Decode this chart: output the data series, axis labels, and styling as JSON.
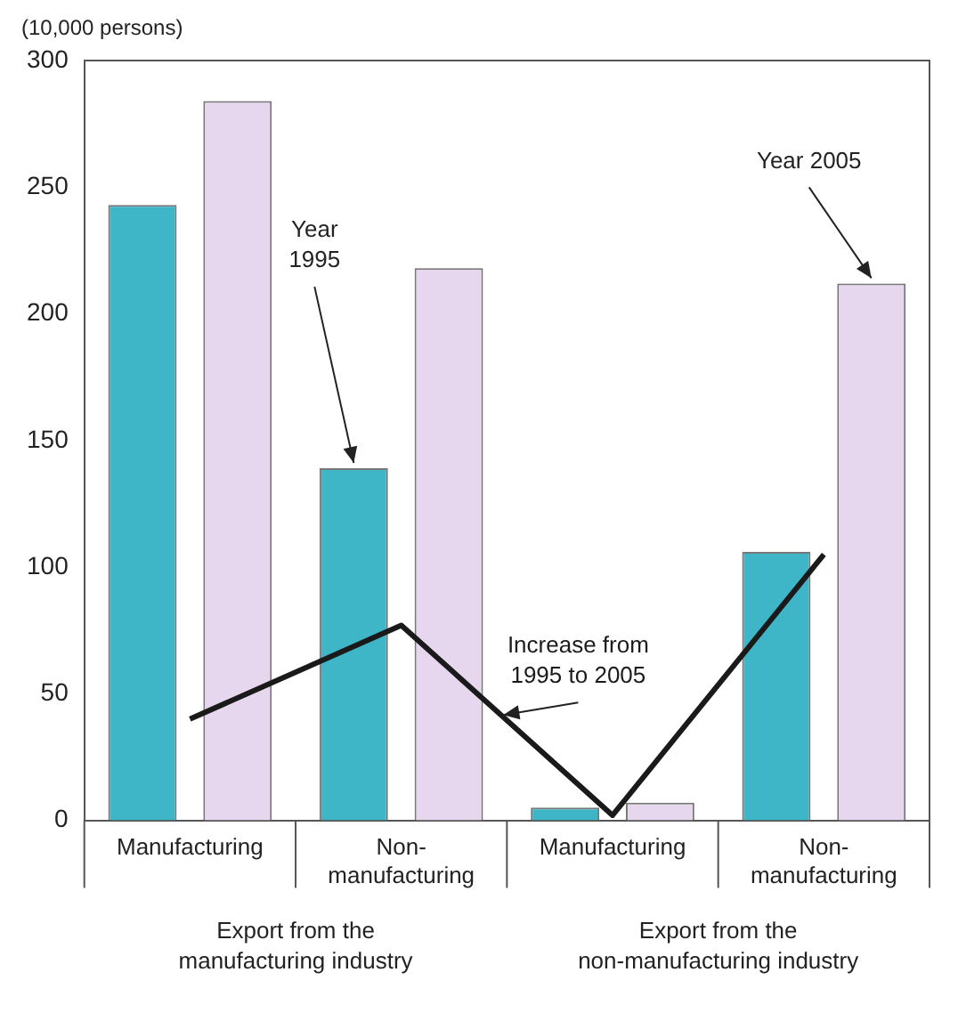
{
  "chart_data": {
    "type": "bar",
    "ylabel": "(10,000 persons)",
    "categories": [
      "Manufacturing",
      "Non-manufacturing",
      "Manufacturing",
      "Non-manufacturing"
    ],
    "series": [
      {
        "name": "Year 1995",
        "color": "#3fb5c8",
        "values": [
          243,
          139,
          5,
          106
        ]
      },
      {
        "name": "Year 2005",
        "color": "#e6d6ee",
        "values": [
          284,
          218,
          7,
          212
        ]
      },
      {
        "name": "Increase from 1995 to 2005",
        "type": "line",
        "color": "#1a1a1a",
        "values": [
          40,
          77,
          2,
          105
        ],
        "marker": "none"
      }
    ],
    "annotations": [
      "Export from the manufacturing industry",
      "Export from the non-manufacturing industry"
    ],
    "ylim": [
      0,
      300
    ],
    "yticks": [
      0,
      50,
      100,
      150,
      200,
      250,
      300
    ],
    "grid": false,
    "legend": false
  }
}
